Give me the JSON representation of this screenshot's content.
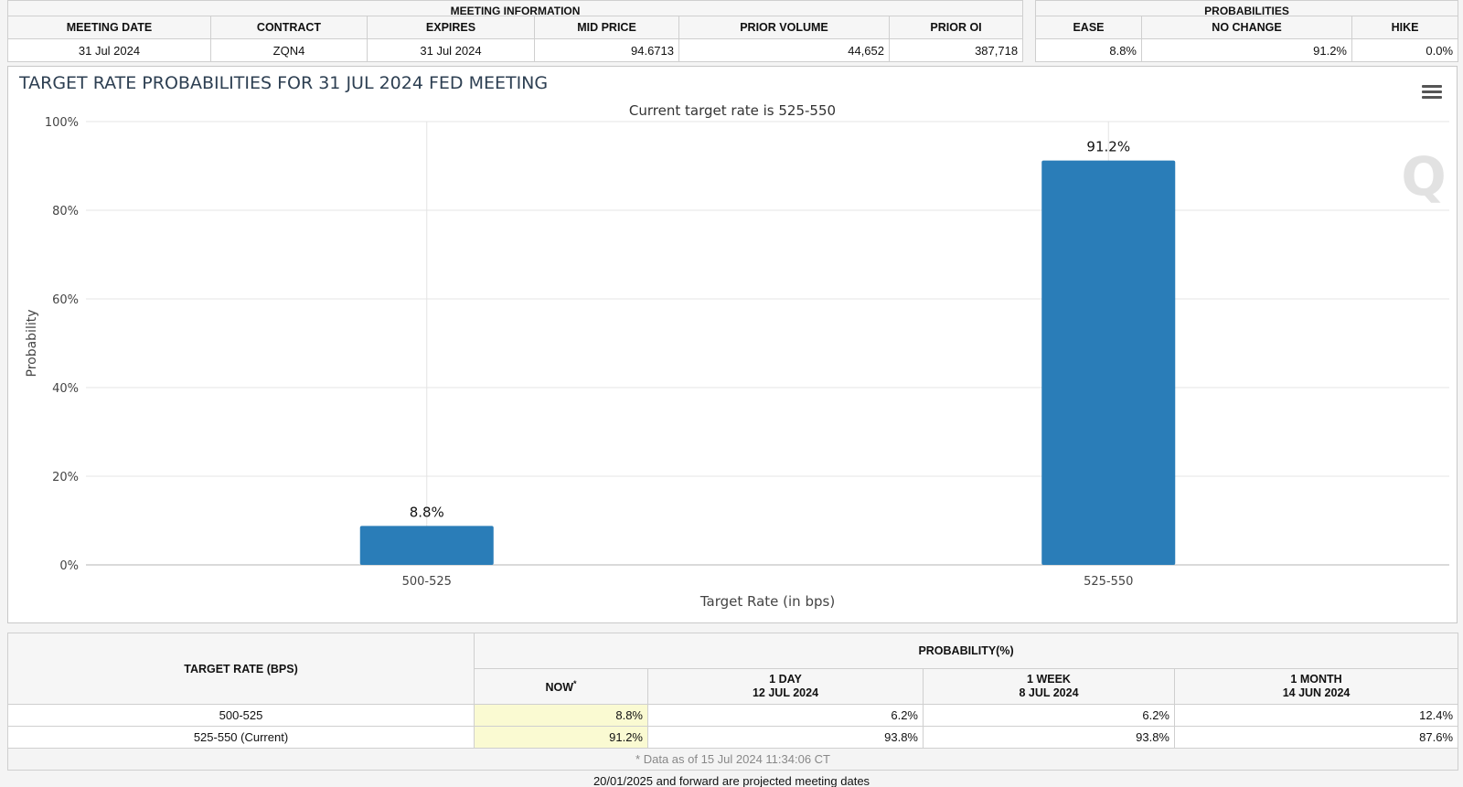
{
  "meeting_info": {
    "caption": "MEETING INFORMATION",
    "headers": [
      "MEETING DATE",
      "CONTRACT",
      "EXPIRES",
      "MID PRICE",
      "PRIOR VOLUME",
      "PRIOR OI"
    ],
    "row": [
      "31 Jul 2024",
      "ZQN4",
      "31 Jul 2024",
      "94.6713",
      "44,652",
      "387,718"
    ]
  },
  "probabilities": {
    "caption": "PROBABILITIES",
    "headers": [
      "EASE",
      "NO CHANGE",
      "HIKE"
    ],
    "row": [
      "8.8%",
      "91.2%",
      "0.0%"
    ]
  },
  "chart_data": {
    "type": "bar",
    "title": "TARGET RATE PROBABILITIES FOR 31 JUL 2024 FED MEETING",
    "subtitle": "Current target rate is 525-550",
    "xlabel": "Target Rate (in bps)",
    "ylabel": "Probability",
    "categories": [
      "500-525",
      "525-550"
    ],
    "values": [
      8.8,
      91.2
    ],
    "data_labels": [
      "8.8%",
      "91.2%"
    ],
    "ylim": [
      0,
      100
    ],
    "yticks": [
      "0%",
      "20%",
      "40%",
      "60%",
      "80%",
      "100%"
    ],
    "grid": true,
    "bar_color": "#2a7db8",
    "watermark": "Q"
  },
  "history": {
    "target_header": "TARGET RATE (BPS)",
    "prob_header": "PROBABILITY(%)",
    "columns": [
      {
        "line1": "NOW",
        "line2": ""
      },
      {
        "line1": "1 DAY",
        "line2": "12 JUL 2024"
      },
      {
        "line1": "1 WEEK",
        "line2": "8 JUL 2024"
      },
      {
        "line1": "1 MONTH",
        "line2": "14 JUN 2024"
      }
    ],
    "now_marker": "*",
    "rows": [
      {
        "rate": "500-525",
        "values": [
          "8.8%",
          "6.2%",
          "6.2%",
          "12.4%"
        ]
      },
      {
        "rate": "525-550 (Current)",
        "values": [
          "91.2%",
          "93.8%",
          "93.8%",
          "87.6%"
        ]
      }
    ],
    "note": "* Data as of 15 Jul 2024 11:34:06 CT"
  },
  "footer": "20/01/2025 and forward are projected meeting dates",
  "colors": {
    "accent_now": "#fafad2",
    "bar": "#2a7db8"
  },
  "icons": {
    "chart_menu": "hamburger-menu-icon"
  }
}
